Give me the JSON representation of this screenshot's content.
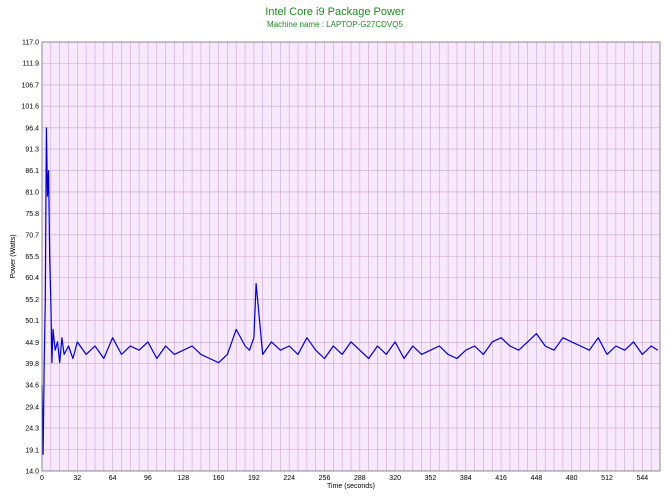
{
  "chart_data": {
    "type": "line",
    "title": "Intel Core i9 Package Power",
    "subtitle": "Machine name : LAPTOP-G27CDVQ5",
    "xlabel": "Time (seconds)",
    "ylabel": "Power (Watts)",
    "xlim": [
      0,
      560
    ],
    "ylim": [
      14.0,
      117.0
    ],
    "x_ticks": [
      "0",
      "32",
      "64",
      "96",
      "128",
      "160",
      "192",
      "224",
      "256",
      "288",
      "320",
      "352",
      "384",
      "416",
      "448",
      "480",
      "512",
      "544"
    ],
    "y_ticks": [
      "14.0",
      "19.1",
      "24.3",
      "29.4",
      "34.6",
      "39.8",
      "44.9",
      "50.1",
      "55.2",
      "60.4",
      "65.5",
      "70.7",
      "75.8",
      "81.0",
      "86.1",
      "91.3",
      "96.4",
      "101.6",
      "106.7",
      "111.9",
      "117.0"
    ],
    "grid": true,
    "background_color": "#f7e8fb",
    "grid_color": "#cba7d3",
    "title_color": "#1f8a1f",
    "series": [
      {
        "name": "",
        "color": "#0000cc",
        "x": [
          0,
          1,
          2,
          3,
          4,
          5,
          6,
          7,
          8,
          9,
          10,
          12,
          14,
          16,
          18,
          20,
          24,
          28,
          32,
          40,
          48,
          56,
          64,
          72,
          80,
          88,
          96,
          104,
          112,
          120,
          128,
          136,
          144,
          152,
          160,
          168,
          176,
          184,
          188,
          192,
          194,
          200,
          208,
          216,
          224,
          232,
          240,
          248,
          256,
          264,
          272,
          280,
          288,
          296,
          304,
          312,
          320,
          328,
          336,
          344,
          352,
          360,
          368,
          376,
          384,
          392,
          400,
          408,
          416,
          424,
          432,
          440,
          448,
          456,
          464,
          472,
          480,
          488,
          496,
          504,
          512,
          520,
          528,
          536,
          544,
          552,
          558
        ],
        "y": [
          34.6,
          18.0,
          40.0,
          55.0,
          96.4,
          80.0,
          86.1,
          65.0,
          55.2,
          40.0,
          48.0,
          43.0,
          45.0,
          40.0,
          46.0,
          42.0,
          44.0,
          41.0,
          45.0,
          42.0,
          44.0,
          41.0,
          46.0,
          42.0,
          44.0,
          43.0,
          45.0,
          41.0,
          44.0,
          42.0,
          43.0,
          44.0,
          42.0,
          41.0,
          40.0,
          42.0,
          48.0,
          44.0,
          43.0,
          46.0,
          59.0,
          42.0,
          45.0,
          43.0,
          44.0,
          42.0,
          46.0,
          43.0,
          41.0,
          44.0,
          42.0,
          45.0,
          43.0,
          41.0,
          44.0,
          42.0,
          45.0,
          41.0,
          44.0,
          42.0,
          43.0,
          44.0,
          42.0,
          41.0,
          43.0,
          44.0,
          42.0,
          45.0,
          46.0,
          44.0,
          43.0,
          45.0,
          47.0,
          44.0,
          43.0,
          46.0,
          45.0,
          44.0,
          43.0,
          46.0,
          42.0,
          44.0,
          43.0,
          45.0,
          42.0,
          44.0,
          43.0
        ]
      }
    ]
  }
}
